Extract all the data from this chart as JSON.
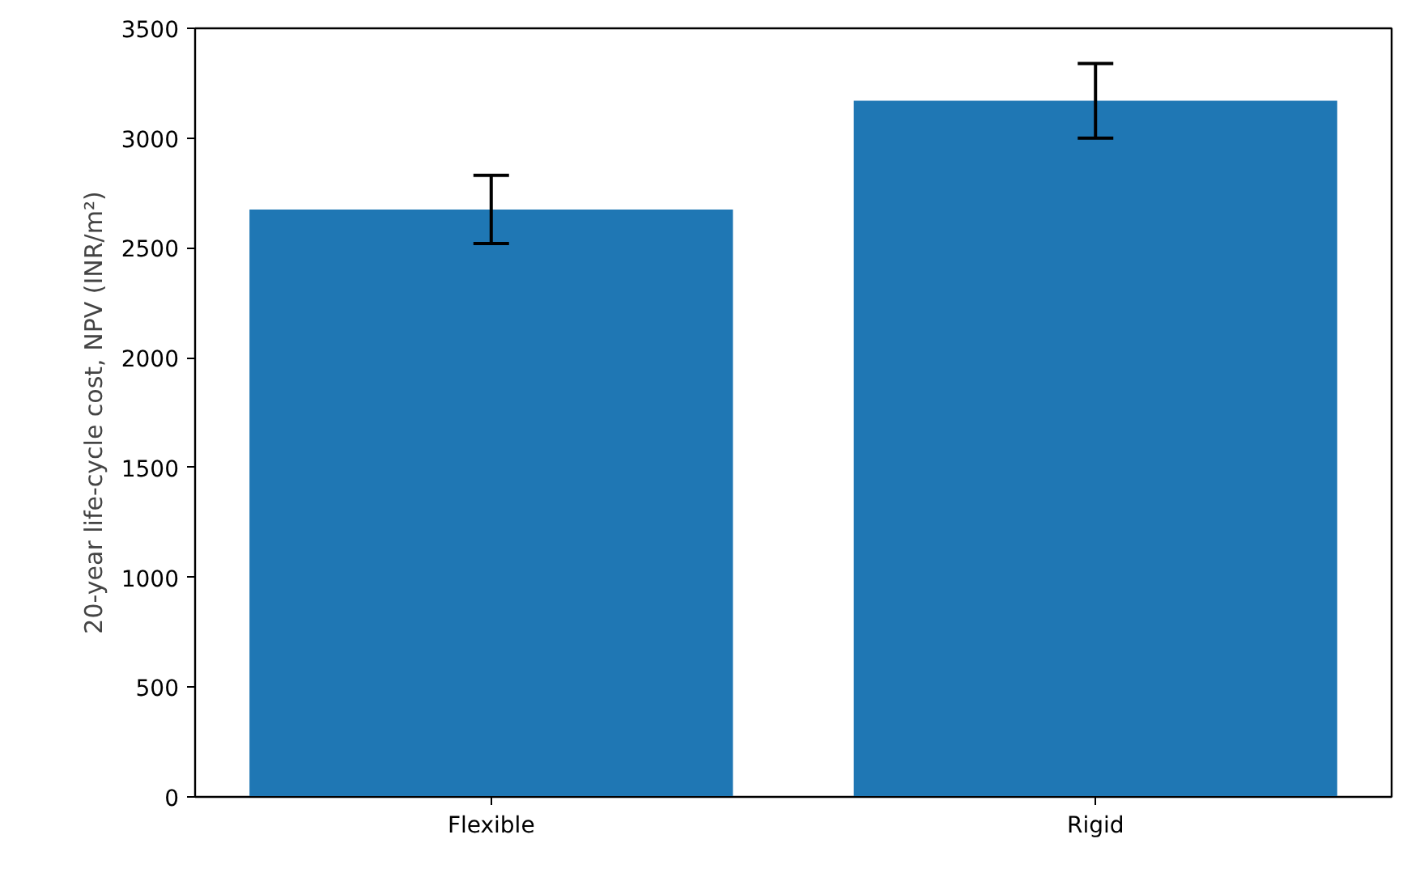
{
  "chart_data": {
    "type": "bar",
    "ylabel": "20-year life-cycle cost, NPV (INR/m²)",
    "categories": [
      "Flexible",
      "Rigid"
    ],
    "values": [
      2675,
      3170
    ],
    "errors": [
      155,
      170
    ],
    "color": "#1f77b4",
    "ylim": [
      0,
      3500
    ],
    "yticks": [
      0,
      500,
      1000,
      1500,
      2000,
      2500,
      3000,
      3500
    ],
    "grid": false
  }
}
